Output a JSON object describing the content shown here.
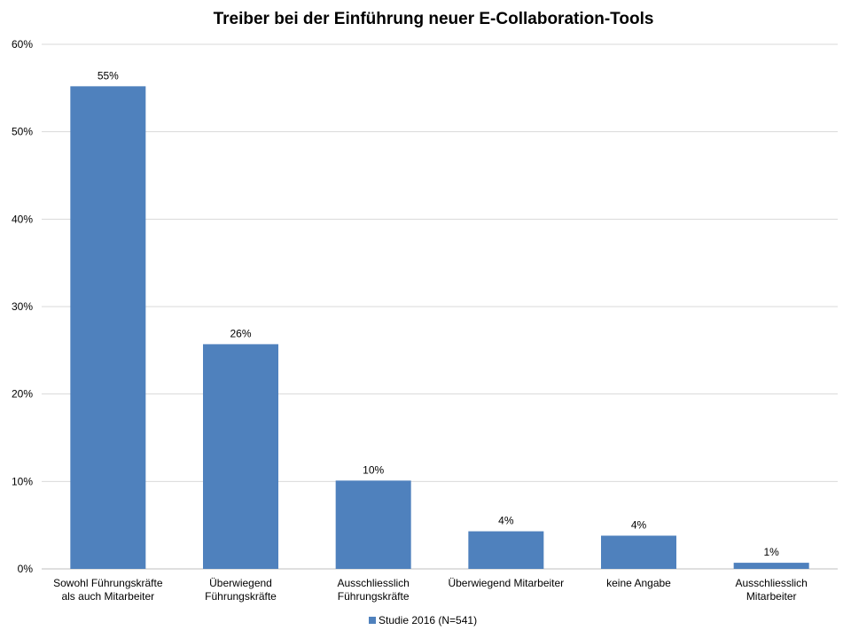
{
  "chart_data": {
    "type": "bar",
    "title": "Treiber bei der Einführung neuer E-Collaboration-Tools",
    "categories": [
      [
        "Sowohl Führungskräfte",
        "als auch Mitarbeiter"
      ],
      [
        "Überwiegend",
        "Führungskräfte"
      ],
      [
        "Ausschliesslich",
        "Führungskräfte"
      ],
      [
        "Überwiegend Mitarbeiter"
      ],
      [
        "keine Angabe"
      ],
      [
        "Ausschliesslich",
        "Mitarbeiter"
      ]
    ],
    "series": [
      {
        "name": "Studie 2016 (N=541)",
        "values": [
          55.2,
          25.7,
          10.1,
          4.3,
          3.8,
          0.7
        ],
        "data_labels": [
          "55%",
          "26%",
          "10%",
          "4%",
          "4%",
          "1%"
        ]
      }
    ],
    "y_ticks": [
      "0%",
      "10%",
      "20%",
      "30%",
      "40%",
      "50%",
      "60%"
    ],
    "ylim": [
      0,
      60
    ],
    "grid": true,
    "legend_position": "bottom",
    "colors": {
      "bar": "#4f81bd",
      "grid": "#d9d9d9",
      "axis": "#bfbfbf"
    }
  }
}
